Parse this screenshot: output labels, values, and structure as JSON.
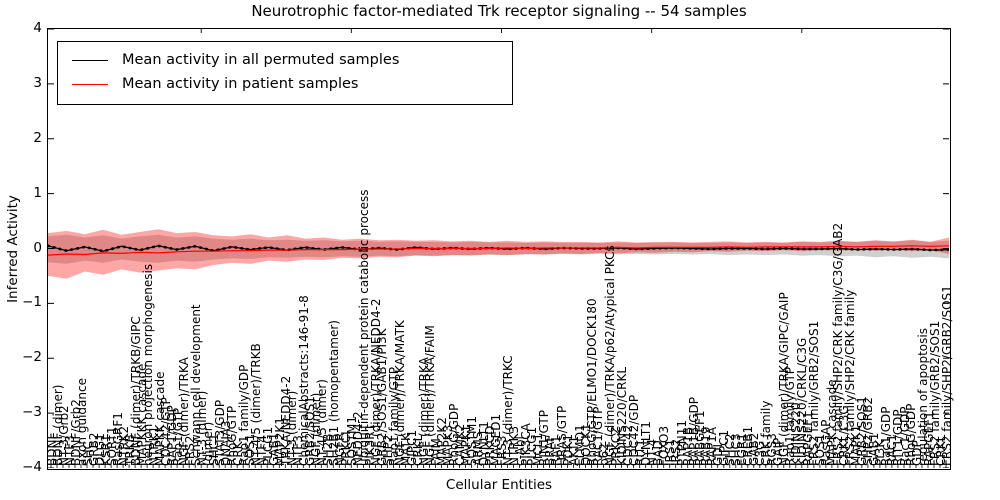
{
  "title": "Neurotrophic factor-mediated Trk receptor signaling -- 54 samples",
  "axes": {
    "xlabel": "Cellular Entities",
    "ylabel": "Inferred Activity"
  },
  "legend": {
    "items": [
      {
        "label": "Mean activity in all permuted samples",
        "color": "#000000"
      },
      {
        "label": "Mean activity in patient samples",
        "color": "#ff0000"
      }
    ]
  },
  "chart_data": {
    "type": "line",
    "title": "Neurotrophic factor-mediated Trk receptor signaling -- 54 samples",
    "xlabel": "Cellular Entities",
    "ylabel": "Inferred Activity",
    "ylim": [
      -4,
      4
    ],
    "yticks": [
      {
        "value": 4,
        "label": "4"
      },
      {
        "value": 3,
        "label": "3"
      },
      {
        "value": 2,
        "label": "2"
      },
      {
        "value": 1,
        "label": "1"
      },
      {
        "value": 0,
        "label": "0"
      },
      {
        "value": -1,
        "label": "−1"
      },
      {
        "value": -2,
        "label": "−2"
      },
      {
        "value": -3,
        "label": "−3"
      },
      {
        "value": -4,
        "label": "−4"
      }
    ],
    "grid": false,
    "legend_position": "upper left",
    "top_tick_every_n_entities": 25,
    "x_tick_labels": [
      "BDNF",
      "BDNF (dimer)",
      "NT-3/Grb2",
      "NTF3",
      "BDNF/Grb2",
      "axon guidance",
      "SHC",
      "GRB2",
      "DLG1",
      "KSR1",
      "SORT1",
      "RasGRF1",
      "NTRK2",
      "TRKB",
      "BDNF (dimer)/TRKB/GIPC",
      "MAPKKK cascade",
      "neuron projection morphogenesis",
      "NTRK1",
      "MAPKK cascade",
      "CDC42/GTP",
      "RAP1/GDP",
      "Rap1/GTP",
      "NGF (dimer)/TRKA",
      "FRS2",
      "Schwann cell development",
      "NT-3 (dimer)",
      "(dimer)",
      "SHC1",
      "STAT3/GDP",
      "DNAJA3",
      "RhoG/GTP",
      "CRK",
      "Rap1 family/GDP",
      "SOS1",
      "NT-4/5 (dimer)/TRKB",
      "NTF4",
      "PLCG1",
      "GAB1",
      "MAP2K1",
      "TRKA/NEDD4-2",
      "NT-3 (dimer)",
      "NTF3",
      "ChemicalAbstracts:146-91-8",
      "GRB2/SOS1",
      "NGF (dimer)",
      "NT-4/5 (dimer)",
      "SH2B",
      "SH2B1 (homopentamer)",
      "NGFR",
      "PRKCI",
      "SQSTM1",
      "NEDD4-2",
      "ubiquitin-dependent protein catabolic process",
      "PIK3R1",
      "NGF (dimer)/TRKA/NEDD4-2",
      "GRB2/SOS1/GAB1/PI3K",
      "SHP2",
      "Rap1 family/GTP",
      "NGF (dimer)/TRKA/MATK",
      "MATK",
      "GIPC1",
      "CRKL",
      "NGF (dimer)/TRKA",
      "NGF (dimer)/TRKA/FAIM",
      "FAIM",
      "MAP2K2",
      "MAPK3",
      "RhoG/GDP",
      "CAMK2",
      "MAPK1",
      "SQSTM1",
      "ARMS",
      "DYNLT1",
      "PRKCD",
      "MAGED1",
      "FRS3",
      "NT-3 (dimer)/TRKC",
      "NTRK3",
      "c-Abl",
      "PIK3CA",
      "PLCG1",
      "MCL1",
      "RIN1/GTP",
      "BRAF",
      "RAF1",
      "HRAS/GTP",
      "PDK1",
      "AKT1",
      "ELMO1",
      "DOCK1",
      "RhoG/GTP/ELMO1/DOCK180",
      "RAC1/GTP",
      "p62",
      "NGF (dimer)/TRKA/p62/Atypical PKCs",
      "PRKCZ",
      "KIDINS220/CRKL",
      "CDC42",
      "CDC42/GDP",
      "RIT1",
      "DYNLT1",
      "NT-4",
      "BAD",
      "FOXO3",
      "IRS1",
      "IRS2",
      "PTPN11",
      "RAP1B",
      "RAP1B/GDP",
      "RABGEF1",
      "RAB19",
      "RAP1A",
      "GDI",
      "GIPC1",
      "SHC2",
      "SHC3",
      "EGR1",
      "CREB1",
      "GAB2",
      "C3G",
      "CRK family",
      "RGS3",
      "GAIP",
      "NGF (dimer)/TRKA/GIPC/GAIP",
      "Rap1 family/GTP",
      "KIDINS220",
      "KIDINS220/CRKL/C3G",
      "RAPGEF1",
      "FRS2 family/GRB2/SOS1",
      "SOS1",
      "RasGAP",
      "MAPK cascade",
      "FRS2 family/SHP2/CRK family/C3G/GAB2",
      "CRKL/C3G",
      "FRS2 family/SHP2/CRK family",
      "MAPK1",
      "GRB2/SOS1",
      "SHP2/GRB2",
      "GAB1",
      "PI3K",
      "Rac1/GDP",
      "RAC1",
      "RIT1/GDP",
      "Rac1/GDP",
      "RhoG/GDP",
      "GDP",
      "regulation of apoptosis",
      "RAPGEF1",
      "FRS2 family/GRB2/SOS1",
      "CRKL",
      "FRS2 family/SHP2/GRB2/SOS1"
    ],
    "series": [
      {
        "name": "Mean activity in all permuted samples",
        "color": "#000000",
        "marker": "dot",
        "values": [
          0.05,
          -0.04,
          0.03,
          -0.05,
          0.04,
          -0.03,
          0.05,
          -0.02,
          0.04,
          -0.04,
          0.03,
          -0.02,
          0.02,
          -0.03,
          0.02,
          -0.02,
          0.02,
          -0.02,
          0.01,
          -0.02,
          0.02,
          -0.01,
          0.01,
          -0.01,
          0.01,
          -0.01,
          0.01,
          -0.01,
          0.01,
          0.0,
          0.0,
          0.01,
          -0.01,
          0.0,
          0.01,
          0.0,
          -0.01,
          0.0,
          0.0,
          -0.01,
          0.0,
          -0.01,
          -0.01,
          0.0,
          -0.02,
          -0.01,
          -0.02,
          -0.01,
          -0.03,
          -0.02
        ]
      },
      {
        "name": "Mean activity in patient samples",
        "color": "#ff0000",
        "marker": "none",
        "values": [
          -0.12,
          -0.1,
          -0.11,
          -0.08,
          -0.09,
          -0.07,
          -0.08,
          -0.06,
          -0.05,
          -0.05,
          -0.04,
          -0.04,
          -0.03,
          -0.03,
          -0.02,
          -0.02,
          -0.02,
          -0.01,
          -0.01,
          -0.01,
          0.0,
          0.0,
          0.0,
          0.0,
          0.0,
          0.01,
          0.0,
          0.01,
          0.01,
          0.01,
          0.01,
          0.02,
          0.01,
          0.02,
          0.02,
          0.02,
          0.02,
          0.03,
          0.02,
          0.03,
          0.03,
          0.03,
          0.03,
          0.04,
          0.03,
          0.04,
          0.04,
          0.05,
          0.04,
          0.05
        ]
      }
    ],
    "bands": [
      {
        "name": "permuted-samples-range",
        "color": "#aaaaaa",
        "opacity": 0.55,
        "upper": [
          0.22,
          0.25,
          0.2,
          0.24,
          0.18,
          0.22,
          0.25,
          0.2,
          0.22,
          0.18,
          0.16,
          0.18,
          0.15,
          0.16,
          0.14,
          0.15,
          0.13,
          0.14,
          0.12,
          0.13,
          0.12,
          0.12,
          0.11,
          0.12,
          0.11,
          0.11,
          0.1,
          0.11,
          0.1,
          0.1,
          0.1,
          0.11,
          0.1,
          0.1,
          0.11,
          0.1,
          0.1,
          0.11,
          0.1,
          0.11,
          0.1,
          0.12,
          0.11,
          0.13,
          0.12,
          0.14,
          0.12,
          0.15,
          0.12,
          0.14
        ],
        "lower": [
          -0.25,
          -0.28,
          -0.22,
          -0.26,
          -0.2,
          -0.24,
          -0.26,
          -0.22,
          -0.24,
          -0.2,
          -0.18,
          -0.19,
          -0.16,
          -0.17,
          -0.15,
          -0.16,
          -0.14,
          -0.15,
          -0.13,
          -0.14,
          -0.12,
          -0.13,
          -0.12,
          -0.12,
          -0.11,
          -0.12,
          -0.11,
          -0.11,
          -0.1,
          -0.11,
          -0.1,
          -0.11,
          -0.1,
          -0.11,
          -0.1,
          -0.11,
          -0.1,
          -0.12,
          -0.11,
          -0.12,
          -0.11,
          -0.13,
          -0.12,
          -0.14,
          -0.13,
          -0.16,
          -0.14,
          -0.17,
          -0.15,
          -0.18
        ]
      },
      {
        "name": "patient-samples-range",
        "color": "#ff0000",
        "opacity": 0.35,
        "upper": [
          0.28,
          0.32,
          0.26,
          0.34,
          0.25,
          0.3,
          0.35,
          0.28,
          0.3,
          0.24,
          0.22,
          0.26,
          0.2,
          0.24,
          0.18,
          0.2,
          0.16,
          0.18,
          0.15,
          0.16,
          0.14,
          0.15,
          0.13,
          0.14,
          0.12,
          0.14,
          0.12,
          0.13,
          0.12,
          0.12,
          0.11,
          0.13,
          0.11,
          0.12,
          0.12,
          0.11,
          0.12,
          0.13,
          0.11,
          0.12,
          0.11,
          0.13,
          0.12,
          0.14,
          0.12,
          0.15,
          0.13,
          0.16,
          0.12,
          0.2
        ],
        "lower": [
          -0.5,
          -0.55,
          -0.42,
          -0.48,
          -0.38,
          -0.44,
          -0.4,
          -0.36,
          -0.38,
          -0.3,
          -0.26,
          -0.28,
          -0.22,
          -0.24,
          -0.2,
          -0.21,
          -0.17,
          -0.18,
          -0.15,
          -0.16,
          -0.13,
          -0.14,
          -0.12,
          -0.13,
          -0.11,
          -0.12,
          -0.1,
          -0.11,
          -0.09,
          -0.1,
          -0.08,
          -0.09,
          -0.07,
          -0.08,
          -0.06,
          -0.07,
          -0.05,
          -0.06,
          -0.04,
          -0.05,
          -0.03,
          -0.05,
          -0.03,
          -0.04,
          -0.02,
          -0.04,
          -0.02,
          -0.05,
          -0.03,
          -0.1
        ]
      }
    ]
  }
}
